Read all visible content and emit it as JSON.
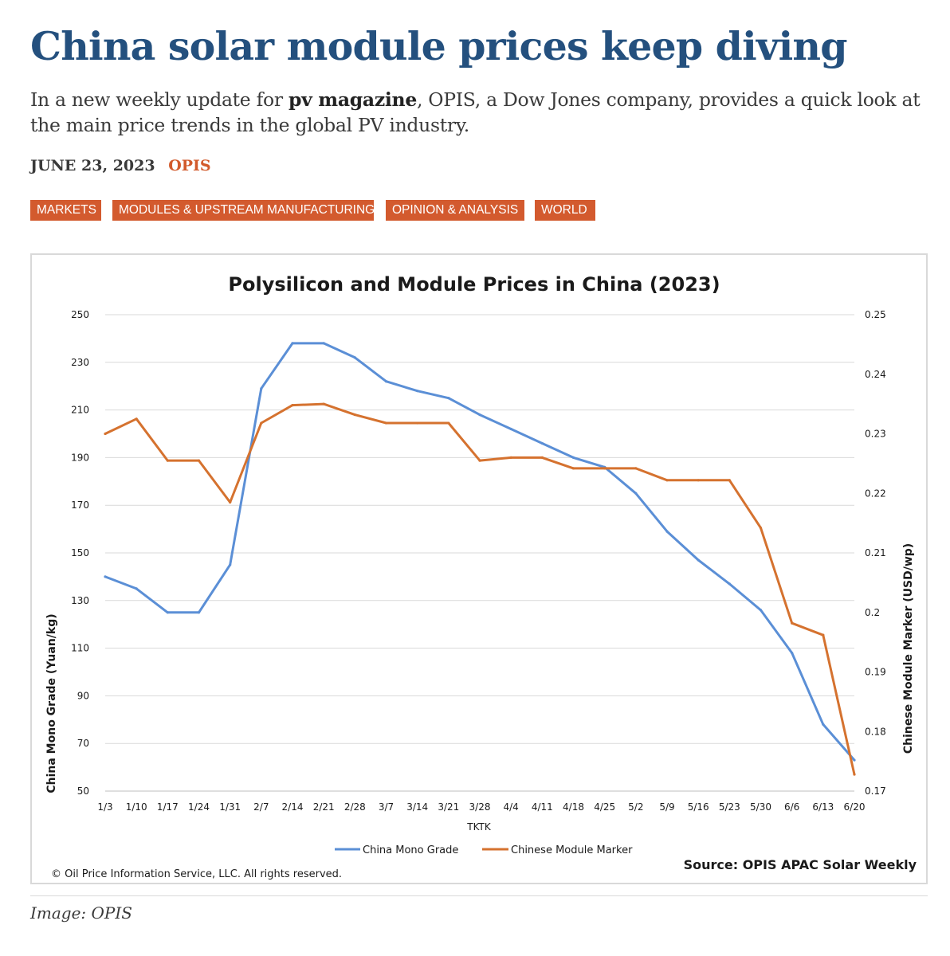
{
  "article": {
    "title": "China solar module prices keep diving",
    "lede_prefix": "In a new weekly update for ",
    "lede_bold": "pv magazine",
    "lede_suffix": ", OPIS, a Dow Jones company, provides a quick look at the main price trends in the global PV industry.",
    "date": "JUNE 23, 2023",
    "author": "OPIS",
    "tags": [
      "MARKETS",
      "MODULES & UPSTREAM MANUFACTURING",
      "OPINION & ANALYSIS",
      "WORLD"
    ],
    "caption": "Image: OPIS"
  },
  "colors": {
    "title": "#24507e",
    "accent": "#d35a2e",
    "series_blue": "#5b8fd6",
    "series_orange": "#d5722f"
  },
  "chart_data": {
    "type": "line",
    "title": "Polysilicon and Module Prices in China (2023)",
    "xlabel": "TKTK",
    "ylabel_left": "China Mono Grade (Yuan/kg)",
    "ylabel_right": "Chinese Module Marker (USD/wp)",
    "ylim_left": [
      50,
      250
    ],
    "yticks_left": [
      50,
      70,
      90,
      110,
      130,
      150,
      170,
      190,
      210,
      230,
      250
    ],
    "ylim_right": [
      0.17,
      0.25
    ],
    "yticks_right": [
      "0.17",
      "0.18",
      "0.19",
      "0.2",
      "0.21",
      "0.22",
      "0.23",
      "0.24",
      "0.25"
    ],
    "grid": true,
    "categories": [
      "1/3",
      "1/10",
      "1/17",
      "1/24",
      "1/31",
      "2/7",
      "2/14",
      "2/21",
      "2/28",
      "3/7",
      "3/14",
      "3/21",
      "3/28",
      "4/4",
      "4/11",
      "4/18",
      "4/25",
      "5/2",
      "5/9",
      "5/16",
      "5/23",
      "5/30",
      "6/6",
      "6/13",
      "6/20"
    ],
    "series": [
      {
        "name": "China Mono Grade",
        "axis": "left",
        "color": "#5b8fd6",
        "values": [
          140,
          135,
          125,
          125,
          145,
          219,
          238,
          238,
          232,
          222,
          218,
          215,
          208,
          202,
          196,
          190,
          186,
          175,
          159,
          147,
          137,
          126,
          108,
          78,
          63
        ]
      },
      {
        "name": "Chinese Module Marker",
        "axis": "right",
        "color": "#d5722f",
        "values": [
          0.23,
          0.2325,
          0.2255,
          0.2255,
          0.2185,
          0.2318,
          0.2348,
          0.235,
          0.2332,
          0.2318,
          0.2318,
          0.2318,
          0.2255,
          0.226,
          0.226,
          0.2242,
          0.2242,
          0.2242,
          0.2222,
          0.2222,
          0.2222,
          0.2142,
          0.1982,
          0.1962,
          0.1728
        ]
      }
    ],
    "legend": [
      "China Mono Grade",
      "Chinese Module Marker"
    ],
    "legend_position": "bottom-center",
    "copyright": "© Oil Price Information Service, LLC.  All rights reserved.",
    "source": "Source: OPIS APAC Solar Weekly"
  }
}
